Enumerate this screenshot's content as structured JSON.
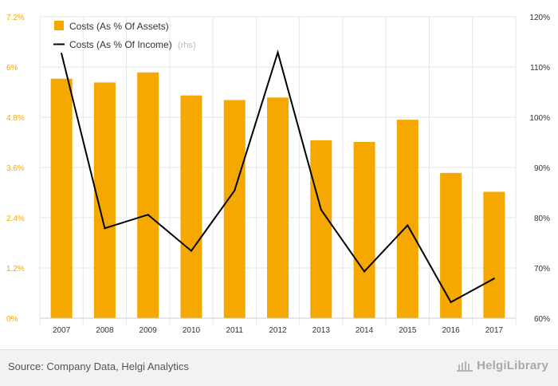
{
  "chart_data": {
    "type": "bar",
    "categories": [
      "2007",
      "2008",
      "2009",
      "2010",
      "2011",
      "2012",
      "2013",
      "2014",
      "2015",
      "2016",
      "2017"
    ],
    "series": [
      {
        "name": "Costs (As % Of Assets)",
        "type": "bar",
        "axis": "left",
        "color": "#f5a800",
        "values": [
          5.72,
          5.63,
          5.87,
          5.32,
          5.21,
          5.27,
          4.25,
          4.21,
          4.74,
          3.47,
          3.02
        ]
      },
      {
        "name": "Costs (As % Of Income)",
        "suffix": "(rhs)",
        "type": "line",
        "axis": "right",
        "color": "#000000",
        "values": [
          112.7,
          77.9,
          80.6,
          73.4,
          85.4,
          112.9,
          81.6,
          69.3,
          78.5,
          63.2,
          67.9
        ]
      }
    ],
    "left_axis": {
      "ylim": [
        0,
        7.2
      ],
      "ticks": [
        "0%",
        "1.2%",
        "2.4%",
        "3.6%",
        "4.8%",
        "6%",
        "7.2%"
      ],
      "color": "#f5a800"
    },
    "right_axis": {
      "ylim": [
        60,
        120
      ],
      "ticks": [
        "60%",
        "70%",
        "80%",
        "90%",
        "100%",
        "110%",
        "120%"
      ],
      "color": "#000000"
    },
    "grid": true,
    "legend": "top-left"
  },
  "footer": {
    "source": "Source: Company Data, Helgi Analytics",
    "brand": "HelgiLibrary",
    "brand_icon": "library-building-icon"
  }
}
